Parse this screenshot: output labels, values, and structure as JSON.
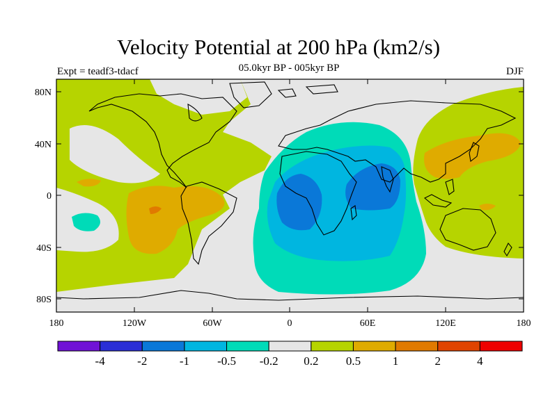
{
  "title": "Velocity Potential at 200 hPa (km2/s)",
  "subtitle": "05.0kyr BP - 005kyr BP",
  "left_label": "Expt = teadf3-tdacf",
  "right_label": "DJF",
  "chart_data": {
    "type": "contour-map",
    "variable": "Velocity Potential at 200 hPa",
    "units": "km2/s",
    "projection": "cylindrical equidistant",
    "x_ticks": [
      "180",
      "120W",
      "60W",
      "0",
      "60E",
      "120E",
      "180"
    ],
    "x_tick_values": [
      -180,
      -120,
      -60,
      0,
      60,
      120,
      180
    ],
    "y_ticks": [
      "80N",
      "40N",
      "0",
      "40S",
      "80S"
    ],
    "y_tick_values": [
      80,
      40,
      0,
      -40,
      -80
    ],
    "lon_range": [
      -180,
      180
    ],
    "lat_range": [
      -90,
      90
    ],
    "contour_levels": [
      "-4",
      "-2",
      "-1",
      "-0.5",
      "-0.2",
      "0.2",
      "0.5",
      "1",
      "2",
      "4"
    ],
    "colorbar_colors": [
      "#7012d6",
      "#2a2fd6",
      "#0a78d8",
      "#00b6e0",
      "#00dbb8",
      "#e6e6e6",
      "#b6d400",
      "#dfab00",
      "#e07a00",
      "#e04400",
      "#ee0000"
    ]
  }
}
